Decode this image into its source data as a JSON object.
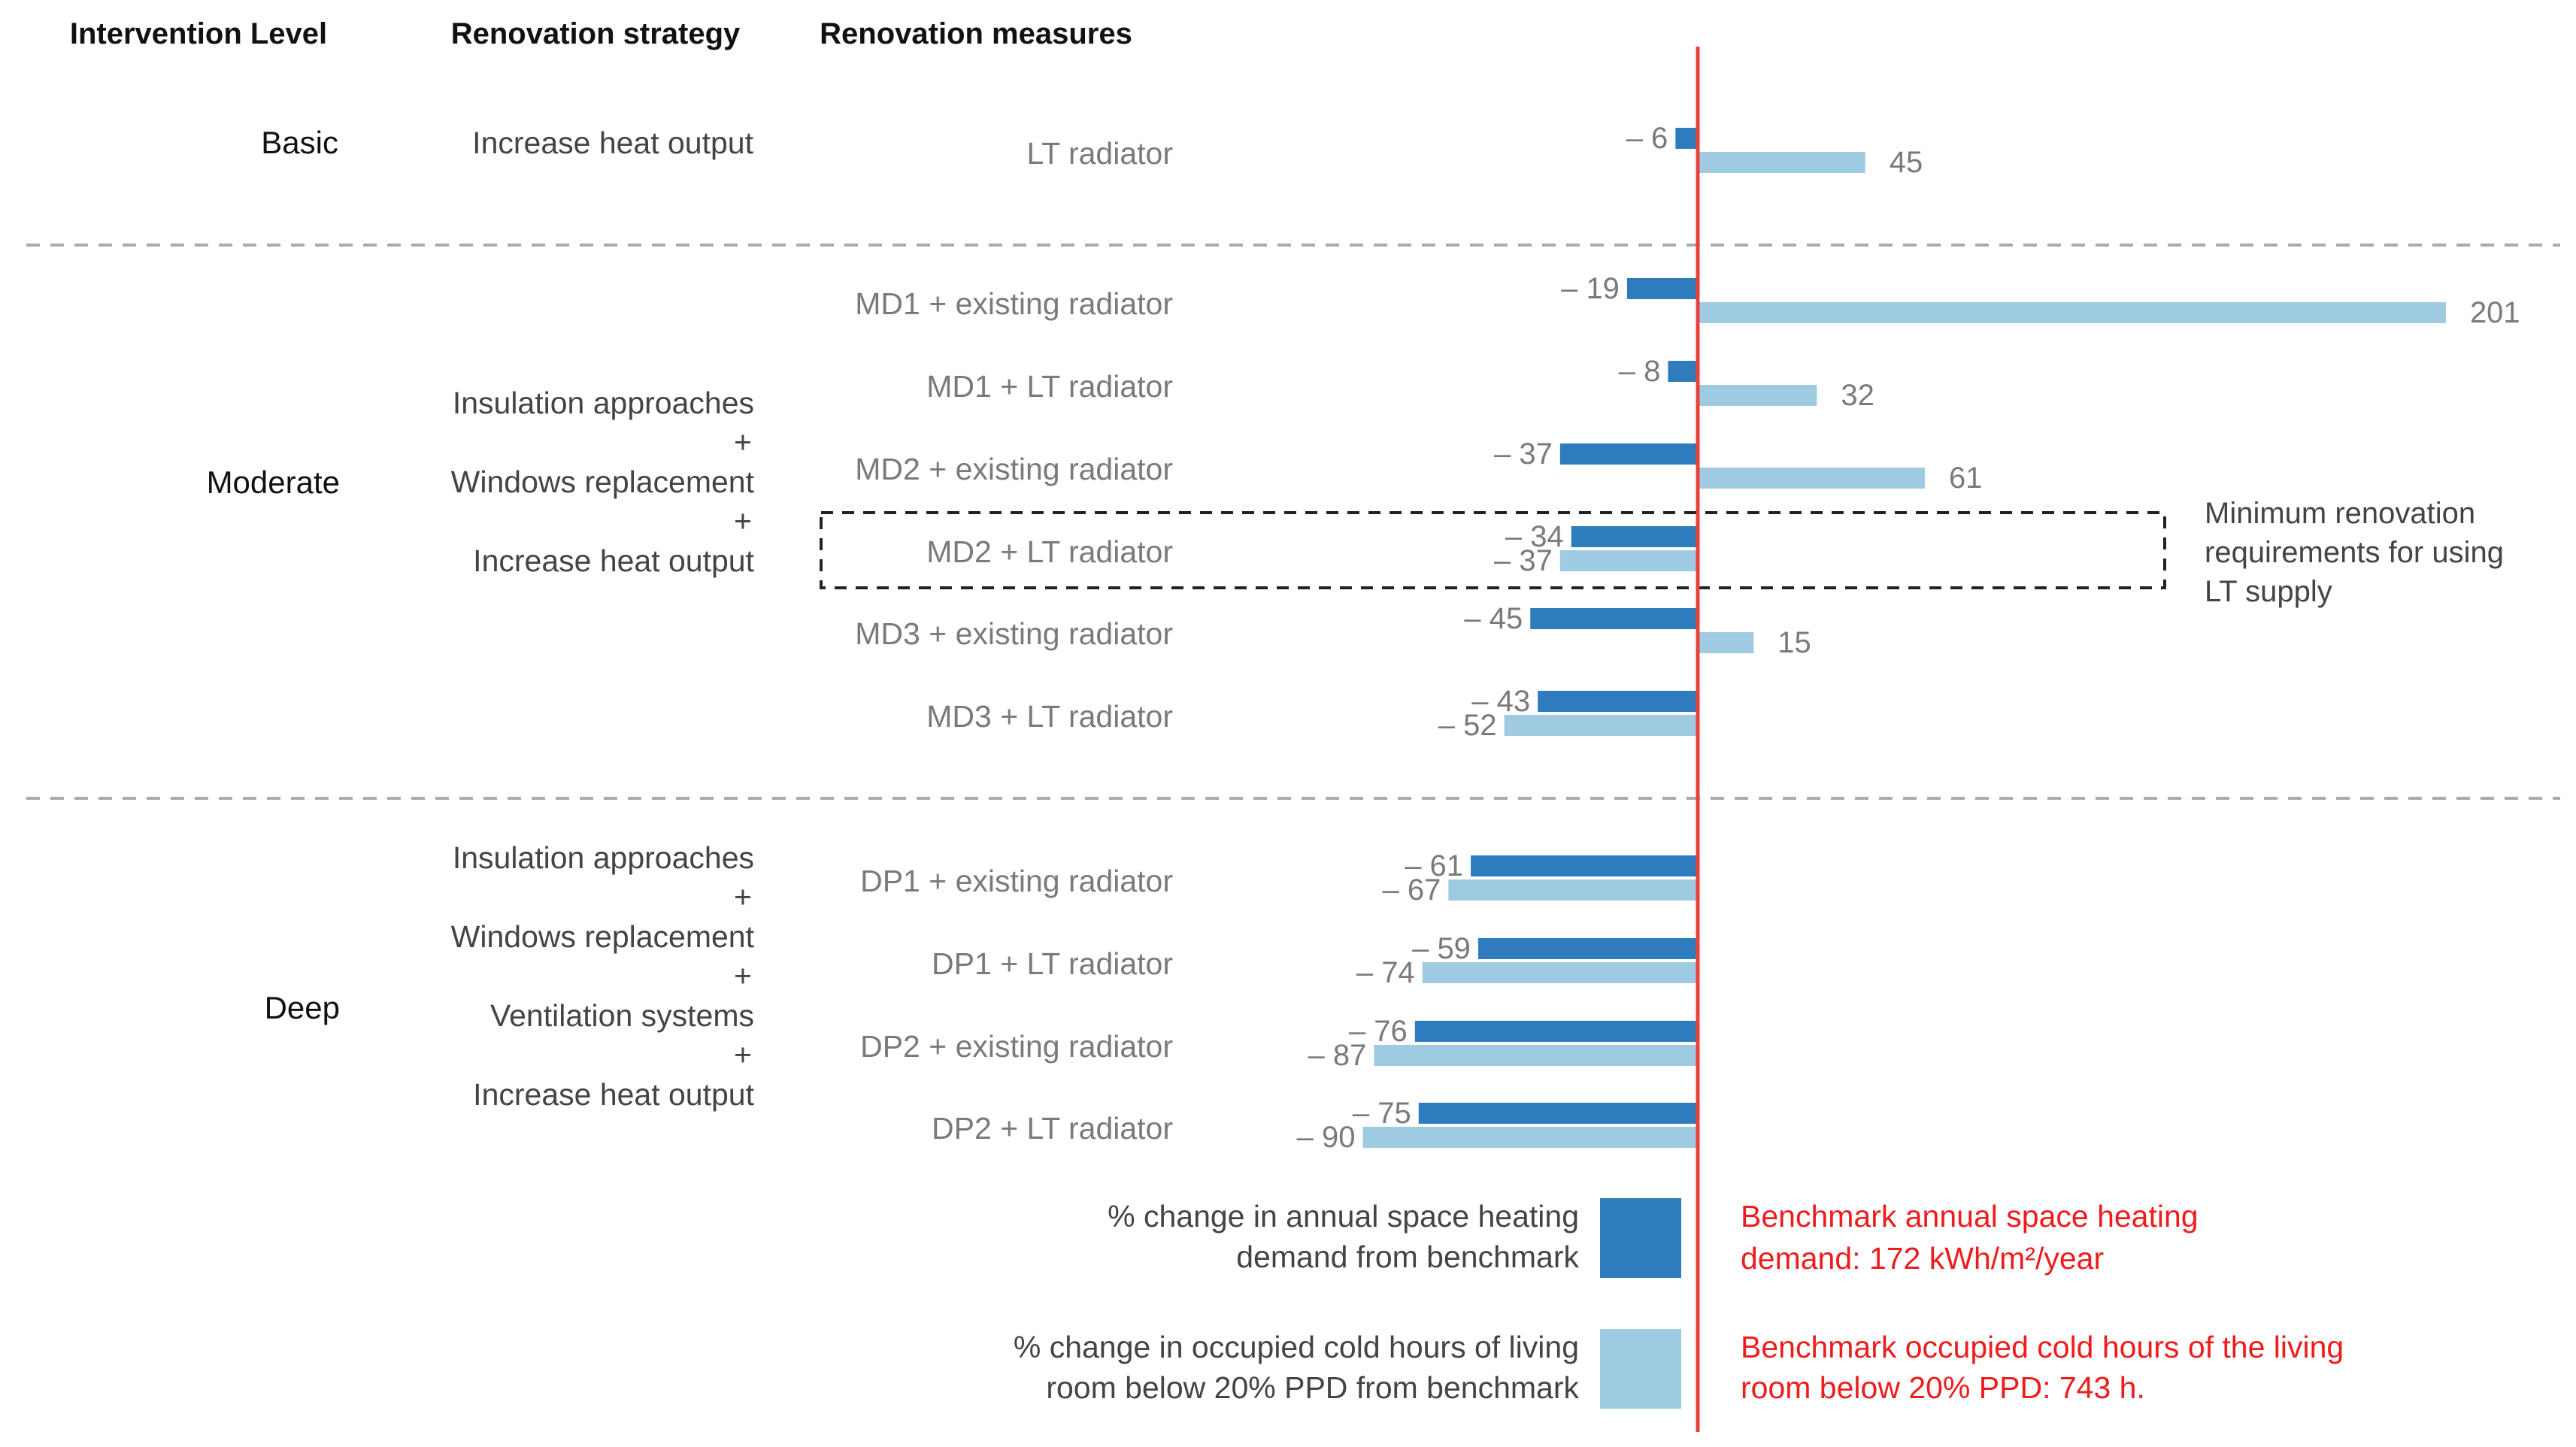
{
  "headers": {
    "intervention_level": "Intervention Level",
    "renovation_strategy": "Renovation strategy",
    "renovation_measures": "Renovation measures"
  },
  "levels": [
    {
      "name": "Basic",
      "strategy": [
        "Increase heat output"
      ]
    },
    {
      "name": "Moderate",
      "strategy": [
        "Insulation approaches",
        "+",
        "Windows replacement",
        "+",
        "Increase heat output"
      ]
    },
    {
      "name": "Deep",
      "strategy": [
        "Insulation approaches",
        "+",
        "Windows replacement",
        "+",
        "Ventilation systems",
        "+",
        "Increase heat output"
      ]
    }
  ],
  "annotation": {
    "box_text": [
      "Minimum renovation",
      "requirements for using",
      "LT supply"
    ]
  },
  "legend": {
    "heating": [
      "% change in annual space heating",
      "demand from benchmark"
    ],
    "cold": [
      "% change in occupied cold hours of living",
      "room below 20% PPD from benchmark"
    ],
    "benchmark_heating": [
      "Benchmark annual space heating",
      "demand: 172 kWh/m²/year"
    ],
    "benchmark_cold": [
      "Benchmark occupied cold hours of the living",
      "room below 20% PPD: 743 h."
    ]
  },
  "colors": {
    "heating": "#2e7bbd",
    "cold": "#9fcbe2",
    "baseline": "#e8413c",
    "benchmark_text": "#ee1c1c"
  },
  "chart_data": {
    "type": "bar",
    "orientation": "horizontal",
    "categories": [
      "LT radiator",
      "MD1 + existing radiator",
      "MD1 + LT radiator",
      "MD2 + existing radiator",
      "MD2 + LT radiator",
      "MD3 + existing radiator",
      "MD3 + LT radiator",
      "DP1 + existing radiator",
      "DP1 + LT radiator",
      "DP2 + existing radiator",
      "DP2 + LT radiator"
    ],
    "series": [
      {
        "name": "% change in annual space heating demand from benchmark",
        "values": [
          -6,
          -19,
          -8,
          -37,
          -34,
          -45,
          -43,
          -61,
          -59,
          -76,
          -75
        ]
      },
      {
        "name": "% change in occupied cold hours of living room below 20% PPD from benchmark",
        "values": [
          45,
          201,
          32,
          61,
          -37,
          15,
          -52,
          -67,
          -74,
          -87,
          -90
        ]
      }
    ],
    "value_labels": {
      "heating": [
        "– 6",
        "– 19",
        "– 8",
        "– 37",
        "– 34",
        "– 45",
        "– 43",
        "– 61",
        "– 59",
        "– 76",
        "– 75"
      ],
      "cold": [
        "45",
        "201",
        "32",
        "61",
        "– 37",
        "15",
        "– 52",
        "– 67",
        "– 74",
        "– 87",
        "– 90"
      ]
    },
    "highlighted_category": "MD2 + LT radiator",
    "baseline": 0,
    "grid": false,
    "legend_position": "bottom"
  }
}
